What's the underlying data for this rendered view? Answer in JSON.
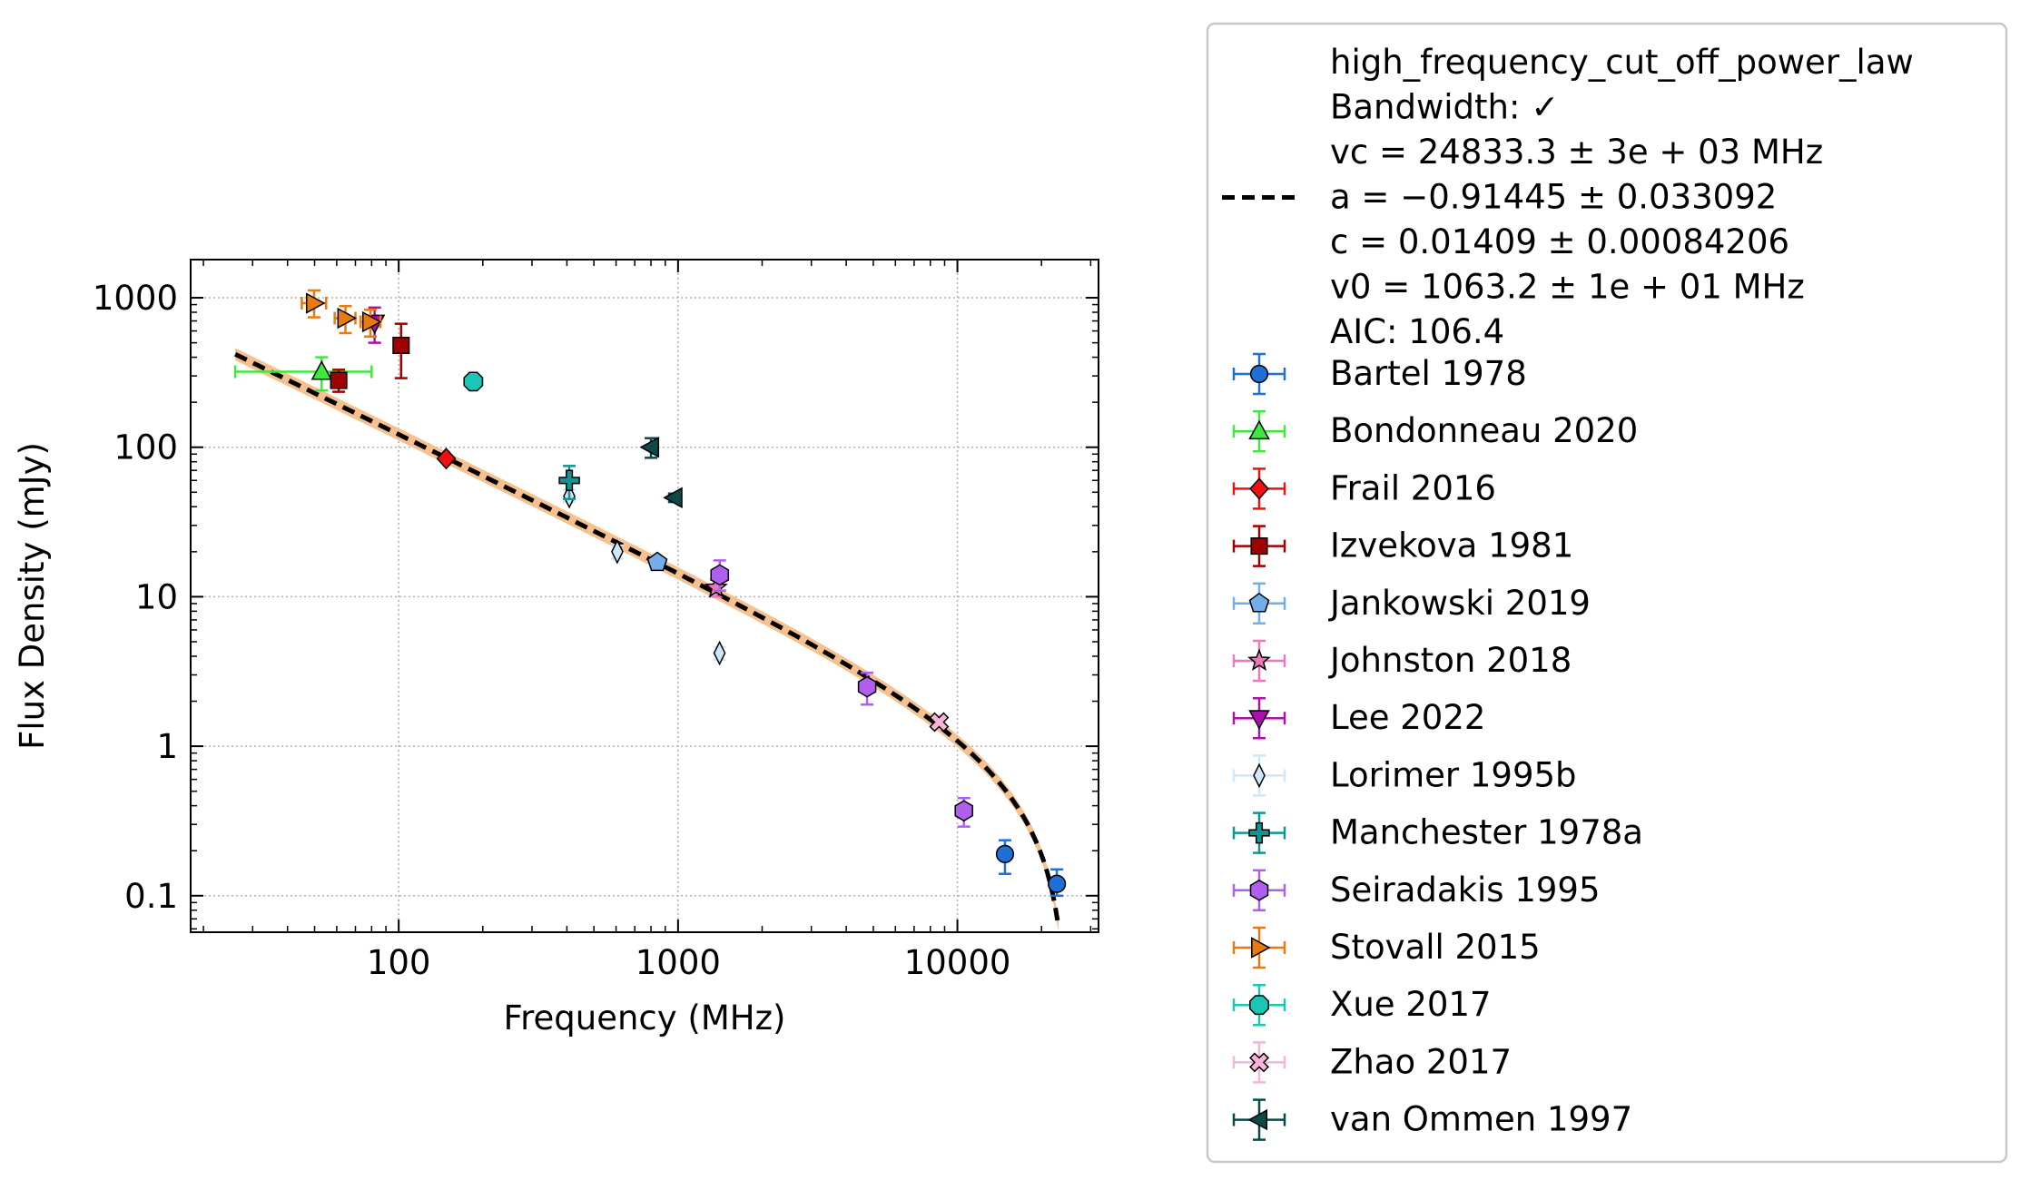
{
  "chart_data": {
    "type": "scatter",
    "xlabel": "Frequency (MHz)",
    "ylabel": "Flux Density (mJy)",
    "xscale": "log",
    "yscale": "log",
    "xlim": [
      18,
      32000
    ],
    "ylim": [
      0.057,
      1800
    ],
    "grid": true,
    "legend_placement": "outside-right",
    "x_ticks": [
      {
        "value": 100,
        "label": "100"
      },
      {
        "value": 1000,
        "label": "1000"
      },
      {
        "value": 10000,
        "label": "10000"
      }
    ],
    "y_ticks": [
      {
        "value": 0.1,
        "label": "0.1"
      },
      {
        "value": 1,
        "label": "1"
      },
      {
        "value": 10,
        "label": "10"
      },
      {
        "value": 100,
        "label": "100"
      },
      {
        "value": 1000,
        "label": "1000"
      }
    ],
    "fit": {
      "model": "high_frequency_cut_off_power_law",
      "legend_lines": [
        "high_frequency_cut_off_power_law",
        "Bandwidth: ✓",
        "vc = 24833.3 ± 3e + 03 MHz",
        "a = −0.91445 ± 0.033092",
        "c = 0.01409 ± 0.00084206",
        "v0 = 1063.2 ± 1e + 01 MHz",
        "AIC: 106.4"
      ],
      "vc": 24833.3,
      "a": -0.91445,
      "c": 0.01409,
      "v0": 1063.2,
      "x_range": [
        26,
        23000
      ],
      "line_color": "#000000",
      "band_color": "#f7c08f"
    },
    "series": [
      {
        "name": "Bartel 1978",
        "marker": "circle",
        "color": "#1f6fd6",
        "points": [
          {
            "x": 14800,
            "y": 0.19,
            "ylo": 0.14,
            "yhi": 0.235
          },
          {
            "x": 22700,
            "y": 0.12,
            "ylo": 0.1,
            "yhi": 0.15
          }
        ]
      },
      {
        "name": "Bondonneau 2020",
        "marker": "triangle-up",
        "color": "#3fe83f",
        "points": [
          {
            "x": 53,
            "y": 320,
            "ylo": 240,
            "yhi": 400,
            "xlo": 26,
            "xhi": 80
          }
        ]
      },
      {
        "name": "Frail 2016",
        "marker": "diamond",
        "color": "#ee1111",
        "points": [
          {
            "x": 148,
            "y": 84,
            "ylo": 80,
            "yhi": 88
          }
        ]
      },
      {
        "name": "Izvekova 1981",
        "marker": "square",
        "color": "#a00000",
        "points": [
          {
            "x": 61,
            "y": 280,
            "ylo": 235,
            "yhi": 330
          },
          {
            "x": 102,
            "y": 480,
            "ylo": 290,
            "yhi": 670
          }
        ]
      },
      {
        "name": "Jankowski 2019",
        "marker": "pentagon",
        "color": "#74aee8",
        "points": [
          {
            "x": 843,
            "y": 17,
            "ylo": 16,
            "yhi": 18
          }
        ]
      },
      {
        "name": "Johnston 2018",
        "marker": "star",
        "color": "#ee77bb",
        "points": [
          {
            "x": 1369,
            "y": 11.5,
            "ylo": 10,
            "yhi": 13
          }
        ]
      },
      {
        "name": "Lee 2022",
        "marker": "triangle-down",
        "color": "#aa11aa",
        "points": [
          {
            "x": 82,
            "y": 680,
            "ylo": 500,
            "yhi": 860
          }
        ]
      },
      {
        "name": "Lorimer 1995b",
        "marker": "thin-diamond",
        "color": "#cfe6fb",
        "points": [
          {
            "x": 408,
            "y": 47,
            "ylo": 43,
            "yhi": 52
          },
          {
            "x": 606,
            "y": 20,
            "ylo": 18,
            "yhi": 22
          },
          {
            "x": 1408,
            "y": 4.2,
            "ylo": 3.8,
            "yhi": 4.6
          }
        ]
      },
      {
        "name": "Manchester 1978a",
        "marker": "plus",
        "color": "#139494",
        "points": [
          {
            "x": 408,
            "y": 60,
            "ylo": 45,
            "yhi": 75
          }
        ]
      },
      {
        "name": "Seiradakis 1995",
        "marker": "hexagon",
        "color": "#b05ef0",
        "points": [
          {
            "x": 1410,
            "y": 14,
            "ylo": 11,
            "yhi": 17.5
          },
          {
            "x": 4750,
            "y": 2.5,
            "ylo": 1.9,
            "yhi": 3.1
          },
          {
            "x": 10550,
            "y": 0.37,
            "ylo": 0.29,
            "yhi": 0.45
          }
        ]
      },
      {
        "name": "Stovall 2015",
        "marker": "triangle-right",
        "color": "#e87a10",
        "points": [
          {
            "x": 49.8,
            "y": 920,
            "ylo": 740,
            "yhi": 1120,
            "xlo": 45,
            "xhi": 55
          },
          {
            "x": 64.5,
            "y": 730,
            "ylo": 580,
            "yhi": 880,
            "xlo": 59,
            "xhi": 70
          },
          {
            "x": 79.2,
            "y": 690,
            "ylo": 550,
            "yhi": 830,
            "xlo": 73,
            "xhi": 86
          }
        ]
      },
      {
        "name": "Xue 2017",
        "marker": "octagon",
        "color": "#1bc6b6",
        "points": [
          {
            "x": 185,
            "y": 275,
            "ylo": 255,
            "yhi": 295
          }
        ]
      },
      {
        "name": "Zhao 2017",
        "marker": "x-filled",
        "color": "#f6b4d6",
        "points": [
          {
            "x": 8600,
            "y": 1.45,
            "ylo": 1.3,
            "yhi": 1.6
          }
        ]
      },
      {
        "name": "van Ommen 1997",
        "marker": "triangle-left",
        "color": "#0c4a4a",
        "points": [
          {
            "x": 800,
            "y": 100,
            "ylo": 85,
            "yhi": 115
          },
          {
            "x": 970,
            "y": 46,
            "ylo": 43,
            "yhi": 49
          }
        ]
      }
    ]
  }
}
